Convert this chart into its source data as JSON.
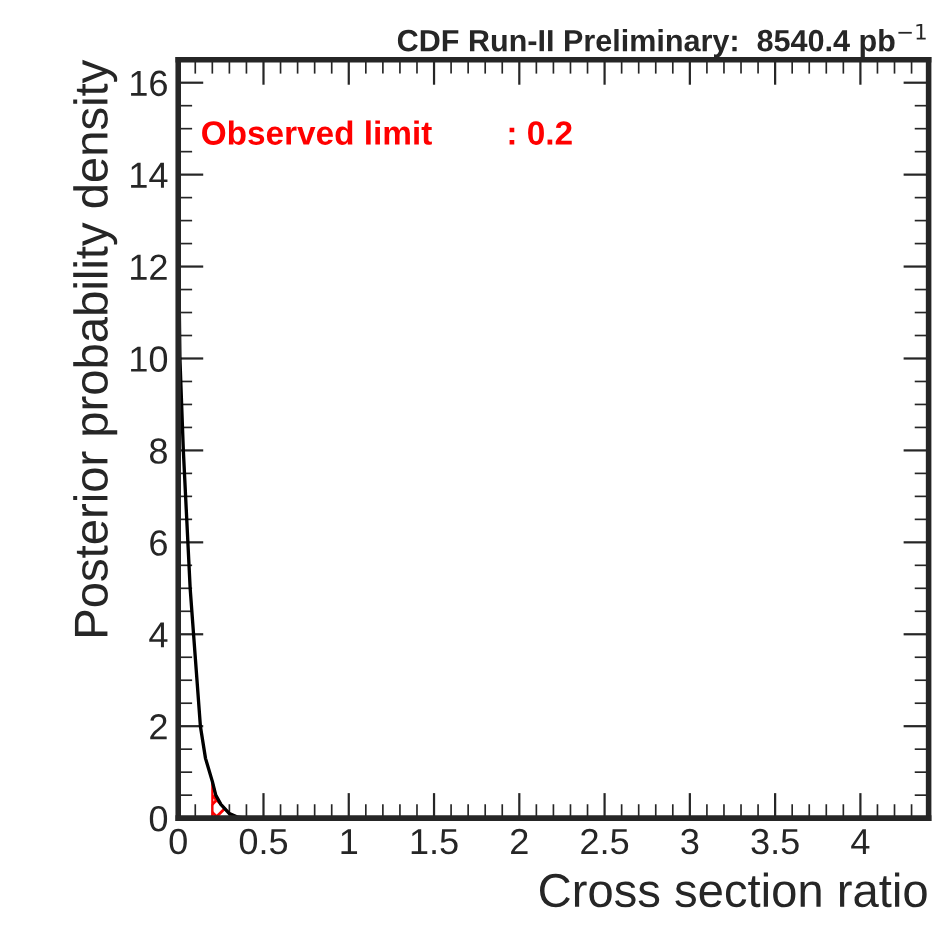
{
  "chart_data": {
    "type": "line",
    "title": "CDF Run-II Preliminary:  8540.4 pb$^{−1}$",
    "xlabel": "Cross section ratio",
    "ylabel": "Posterior probability density",
    "annotations": [
      "Observed limit        : 0.2"
    ],
    "series": [
      {
        "color": "#000000",
        "x": [
          0,
          0.005,
          0.01,
          0.02,
          0.03,
          0.05,
          0.07,
          0.09,
          0.11,
          0.13,
          0.16,
          0.2,
          0.22,
          0.25,
          0.3,
          0.35,
          0.4
        ],
        "values": [
          12.8,
          11.5,
          10,
          9,
          8,
          6.5,
          5,
          4,
          3,
          2,
          1.3,
          0.8,
          0.5,
          0.3,
          0.1,
          0.02,
          0
        ]
      },
      {
        "type": "area",
        "color": "#ff0000",
        "x": [
          0.2,
          0.22,
          0.25,
          0.3,
          0.35
        ],
        "values": [
          0.8,
          0.5,
          0.3,
          0.1,
          0.02
        ]
      }
    ],
    "xlim": [
      0,
      4.4
    ],
    "xticks": [
      0,
      0.5,
      1,
      1.5,
      2,
      2.5,
      3,
      3.5,
      4
    ],
    "ylim": [
      0,
      16.5
    ],
    "yticks": [
      0,
      2,
      4,
      6,
      8,
      10,
      12,
      14,
      16
    ],
    "grid": false,
    "legend": false
  }
}
